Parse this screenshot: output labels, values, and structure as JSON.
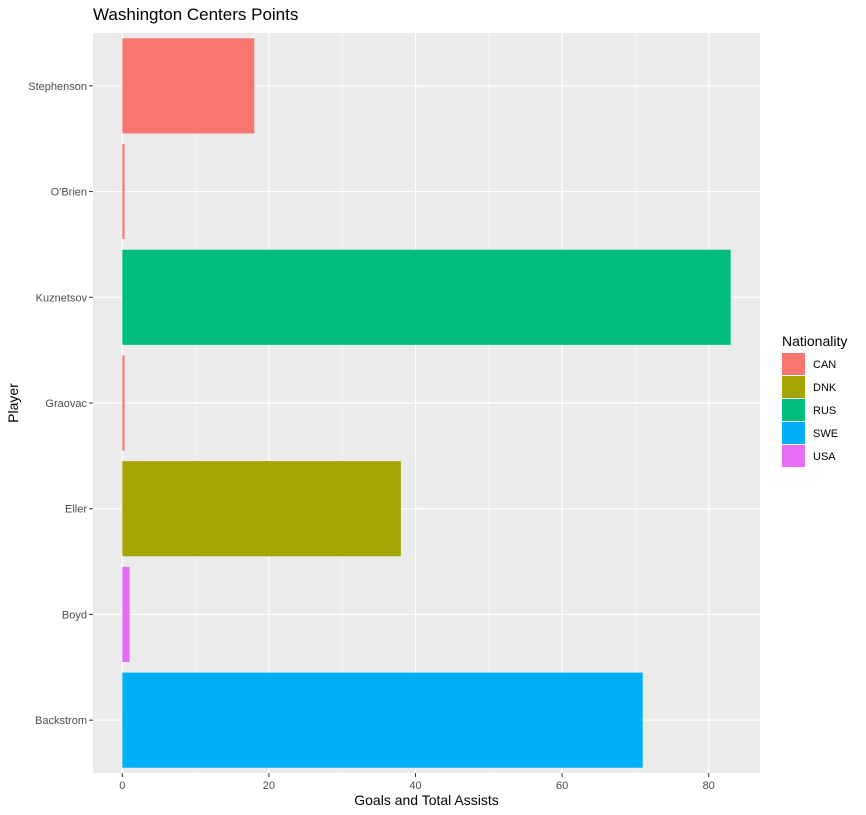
{
  "chart_data": {
    "type": "bar",
    "orientation": "horizontal",
    "title": "Washington Centers Points",
    "xlabel": "Goals and Total Assists",
    "ylabel": "Player",
    "xlim": [
      -4,
      87
    ],
    "xticks": [
      0,
      20,
      40,
      60,
      80
    ],
    "grid": true,
    "legend": {
      "title": "Nationality",
      "position": "right",
      "entries": [
        {
          "name": "CAN",
          "color": "#F8766D"
        },
        {
          "name": "DNK",
          "color": "#A3A500"
        },
        {
          "name": "RUS",
          "color": "#00BF7D"
        },
        {
          "name": "SWE",
          "color": "#00B0F6"
        },
        {
          "name": "USA",
          "color": "#E76BF3"
        }
      ]
    },
    "categories": [
      "Stephenson",
      "O'Brien",
      "Kuznetsov",
      "Graovac",
      "Eller",
      "Boyd",
      "Backstrom"
    ],
    "values": [
      18,
      0.3,
      83,
      0.3,
      38,
      1,
      71
    ],
    "nationality": [
      "CAN",
      "CAN",
      "RUS",
      "CAN",
      "DNK",
      "USA",
      "SWE"
    ]
  }
}
